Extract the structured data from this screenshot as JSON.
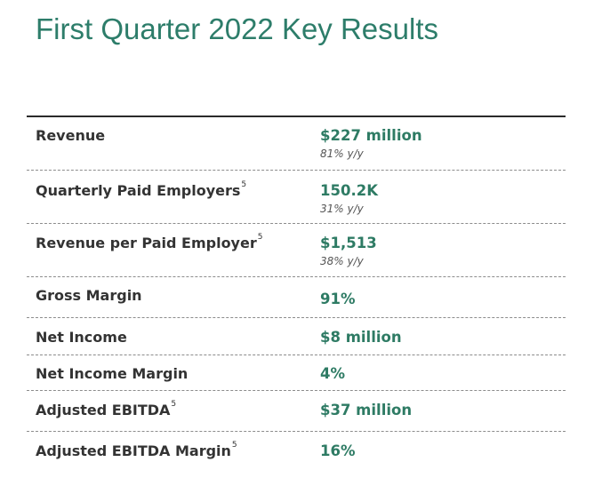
{
  "title": "First Quarter 2022 Key Results",
  "rows": [
    {
      "label": "Revenue",
      "footnote": "",
      "value": "$227 million",
      "sub": "81% y/y"
    },
    {
      "label": "Quarterly Paid Employers",
      "footnote": "5",
      "value": "150.2K",
      "sub": "31% y/y"
    },
    {
      "label": "Revenue per Paid Employer",
      "footnote": "5",
      "value": "$1,513",
      "sub": "38% y/y"
    },
    {
      "label": "Gross Margin",
      "footnote": "",
      "value": "91%",
      "sub": ""
    },
    {
      "label": "Net Income",
      "footnote": "",
      "value": "$8 million",
      "sub": ""
    },
    {
      "label": "Net Income Margin",
      "footnote": "",
      "value": "4%",
      "sub": ""
    },
    {
      "label": "Adjusted EBITDA",
      "footnote": "5",
      "value": "$37 million",
      "sub": ""
    },
    {
      "label": "Adjusted EBITDA Margin",
      "footnote": "5",
      "value": "16%",
      "sub": ""
    }
  ]
}
